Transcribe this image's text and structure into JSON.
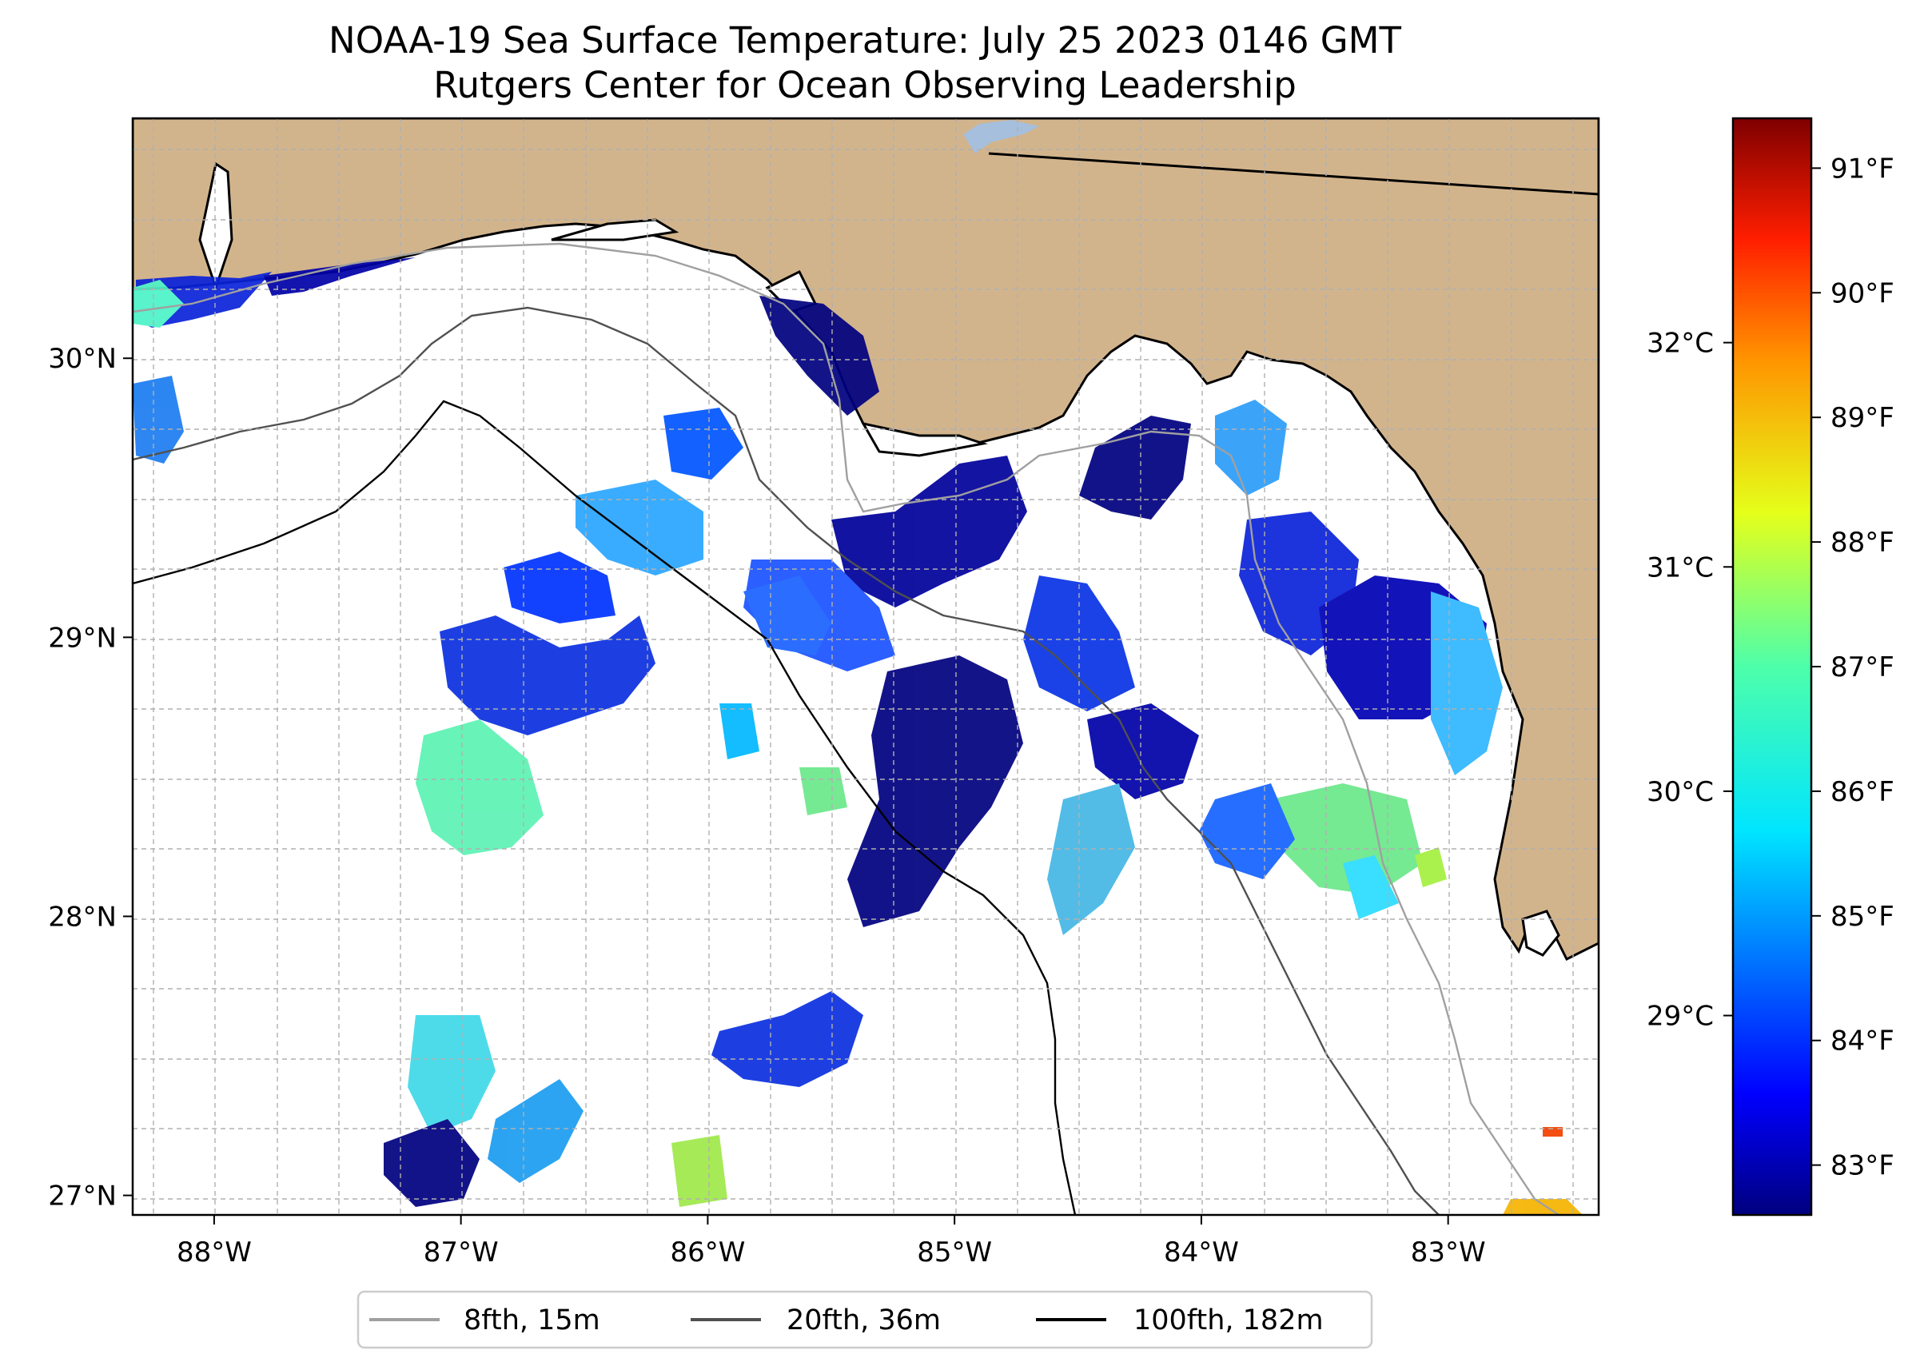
{
  "title": {
    "line1": "NOAA-19 Sea Surface Temperature: July 25 2023 0146 GMT",
    "line2": "Rutgers Center for Ocean Observing Leadership"
  },
  "map": {
    "lon_range": [
      -88.33,
      -82.39
    ],
    "lat_range": [
      26.93,
      30.86
    ],
    "lon_ticks": [
      {
        "value": -88,
        "label": "88°W"
      },
      {
        "value": -87,
        "label": "87°W"
      },
      {
        "value": -86,
        "label": "86°W"
      },
      {
        "value": -85,
        "label": "85°W"
      },
      {
        "value": -84,
        "label": "84°W"
      },
      {
        "value": -83,
        "label": "83°W"
      }
    ],
    "lat_ticks": [
      {
        "value": 27,
        "label": "27°N"
      },
      {
        "value": 28,
        "label": "28°N"
      },
      {
        "value": 29,
        "label": "29°N"
      },
      {
        "value": 30,
        "label": "30°N"
      }
    ],
    "land_color": "#d2b48c",
    "gridlines": "dashed",
    "legend_position": "bottom-center"
  },
  "contours": [
    {
      "label": "8fth, 15m",
      "color": "#a0a0a0"
    },
    {
      "label": "20fth, 36m",
      "color": "#505050"
    },
    {
      "label": "100fth, 182m",
      "color": "#000000"
    }
  ],
  "colorbar": {
    "colormap": "jet",
    "f_range": [
      82.6,
      91.4
    ],
    "fahrenheit_ticks": [
      {
        "value": 83,
        "label": "83°F"
      },
      {
        "value": 84,
        "label": "84°F"
      },
      {
        "value": 85,
        "label": "85°F"
      },
      {
        "value": 86,
        "label": "86°F"
      },
      {
        "value": 87,
        "label": "87°F"
      },
      {
        "value": 88,
        "label": "88°F"
      },
      {
        "value": 89,
        "label": "89°F"
      },
      {
        "value": 90,
        "label": "90°F"
      },
      {
        "value": 91,
        "label": "91°F"
      }
    ],
    "celsius_ticks": [
      {
        "value": 29,
        "label": "29°C"
      },
      {
        "value": 30,
        "label": "30°C"
      },
      {
        "value": 31,
        "label": "31°C"
      },
      {
        "value": 32,
        "label": "32°C"
      }
    ]
  }
}
